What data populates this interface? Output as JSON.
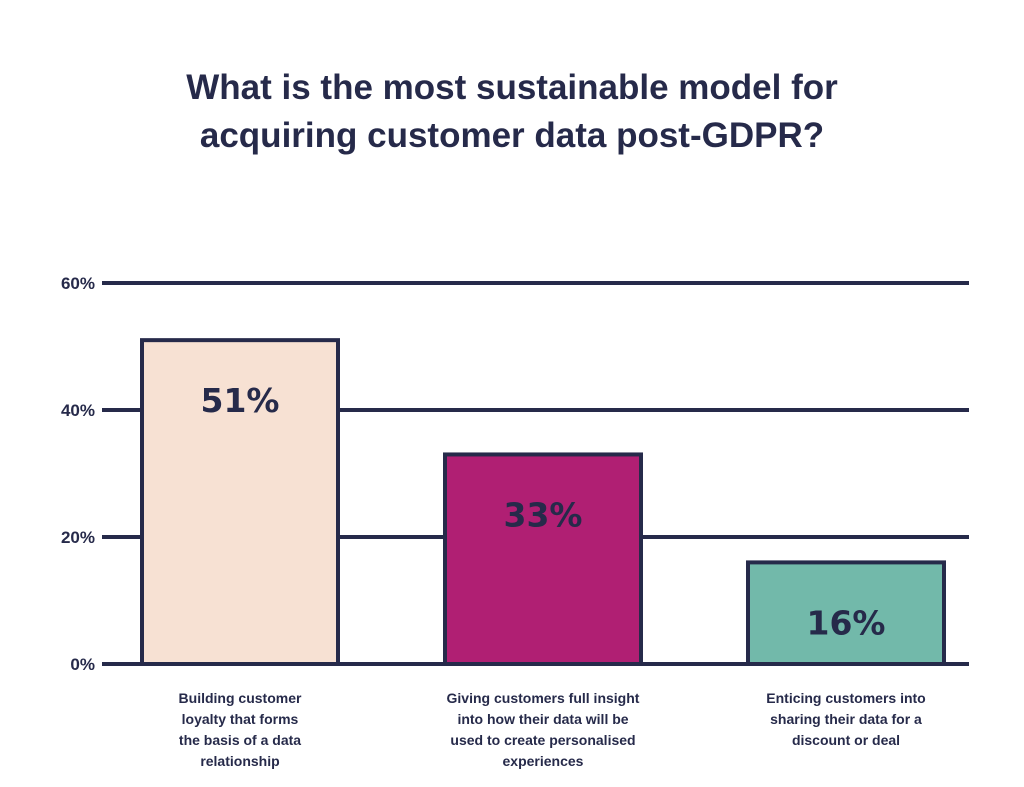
{
  "chart_data": {
    "type": "bar",
    "title_lines": [
      "What is the most sustainable model for",
      "acquiring customer data post-GDPR?"
    ],
    "categories": [
      "Building customer\nloyalty that forms\nthe basis of a data\nrelationship",
      "Giving customers full insight\ninto how their data will be\nused to create personalised\nexperiences",
      "Enticing customers into\nsharing their data for a\ndiscount or deal"
    ],
    "values": [
      51,
      33,
      16
    ],
    "value_labels": [
      "51%",
      "33%",
      "16%"
    ],
    "bar_colors": [
      "#f7e1d3",
      "#b01f73",
      "#72b9aa"
    ],
    "yticks": [
      {
        "value": 0,
        "label": "0%"
      },
      {
        "value": 20,
        "label": "20%"
      },
      {
        "value": 40,
        "label": "40%"
      },
      {
        "value": 60,
        "label": "60%"
      }
    ],
    "ylim": [
      0,
      60
    ],
    "grid": true,
    "xlabel": "",
    "ylabel": "",
    "colors": {
      "ink": "#262a4a"
    }
  }
}
